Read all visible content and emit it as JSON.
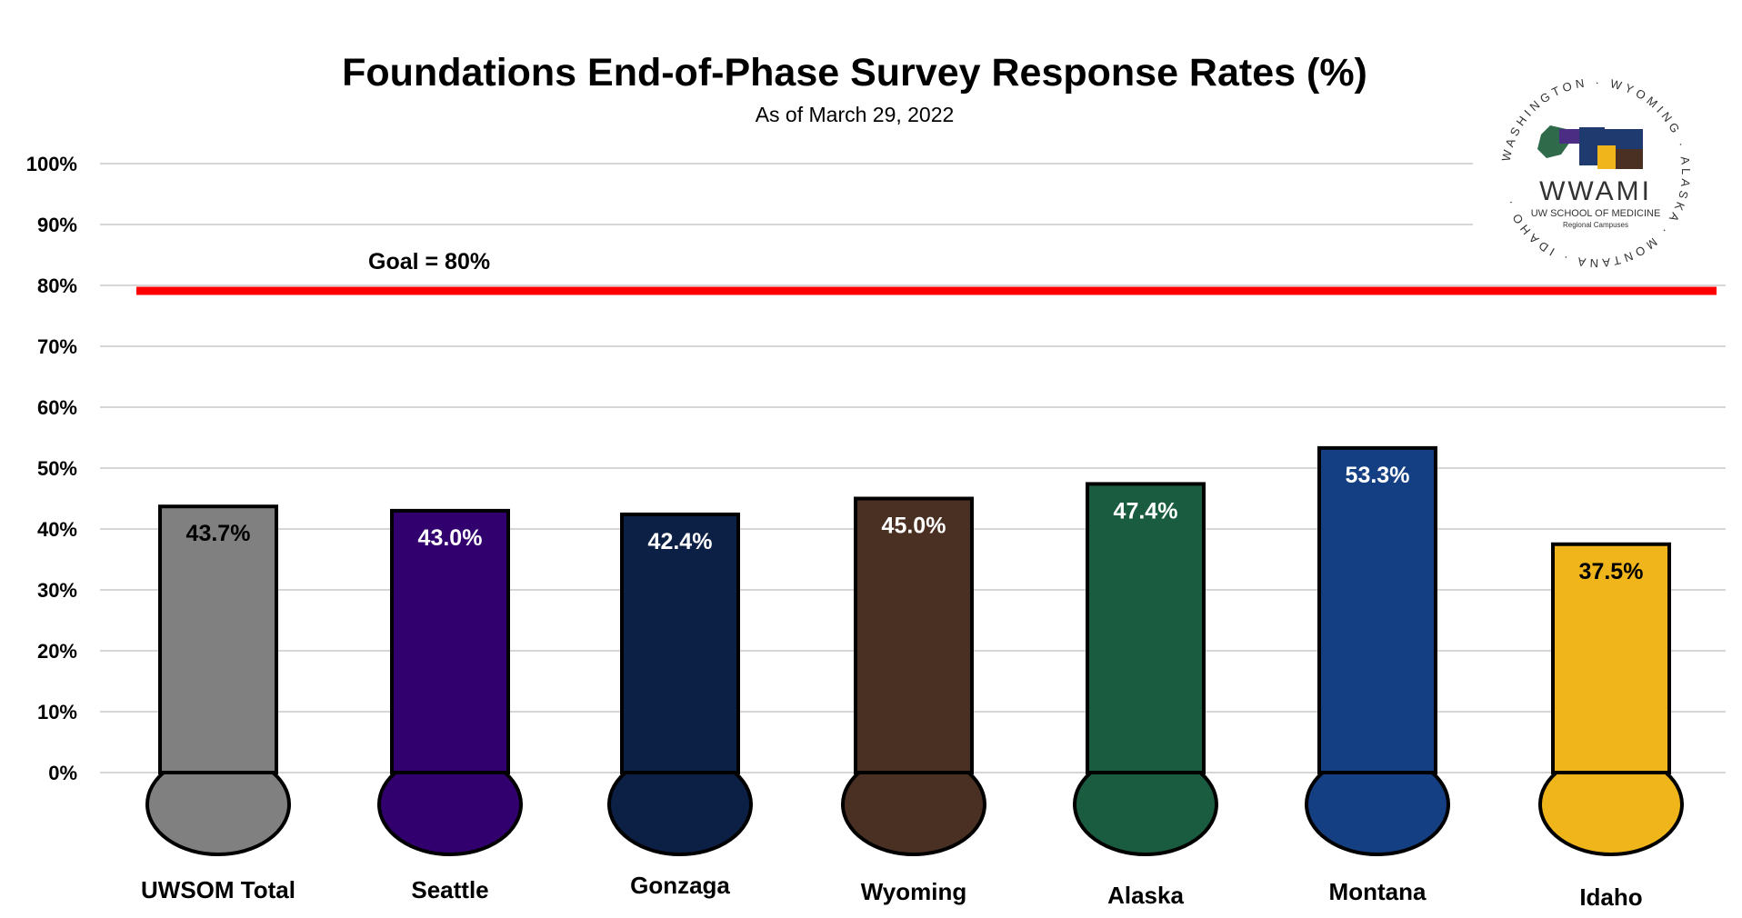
{
  "chart_data": {
    "type": "bar",
    "title": "Foundations End-of-Phase Survey Response Rates (%)",
    "subtitle": "As of March 29, 2022",
    "categories": [
      "UWSOM Total",
      "Seattle",
      "Gonzaga",
      "Wyoming",
      "Alaska",
      "Montana",
      "Idaho"
    ],
    "values": [
      43.7,
      43.0,
      42.4,
      45.0,
      47.4,
      53.3,
      37.5
    ],
    "data_labels": [
      "43.7%",
      "43.0%",
      "42.4%",
      "45.0%",
      "47.4%",
      "53.3%",
      "37.5%"
    ],
    "colors": [
      "#808080",
      "#32006e",
      "#0c1f45",
      "#4a3023",
      "#1a5c3f",
      "#143f82",
      "#f1b51c"
    ],
    "label_colors": [
      "#000000",
      "#ffffff",
      "#ffffff",
      "#ffffff",
      "#ffffff",
      "#ffffff",
      "#000000"
    ],
    "y_ticks": [
      "0%",
      "10%",
      "20%",
      "30%",
      "40%",
      "50%",
      "60%",
      "70%",
      "80%",
      "90%",
      "100%"
    ],
    "ylim": [
      0,
      100
    ],
    "grid": true,
    "goal": {
      "value": 80,
      "label": "Goal = 80%",
      "color": "#ff0000"
    }
  },
  "logo": {
    "name": "WWAMI",
    "line1": "UW SCHOOL OF MEDICINE",
    "line2": "Regional Campuses",
    "ring_text": "WASHINGTON · WYOMING · ALASKA · MONTANA · IDAHO ·"
  }
}
